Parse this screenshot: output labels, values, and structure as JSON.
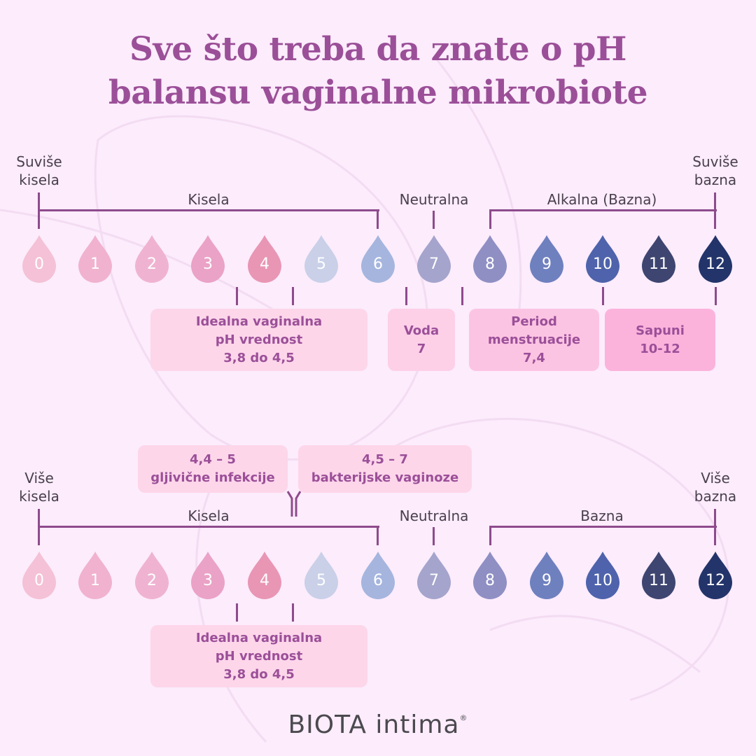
{
  "title": {
    "line1": "Sve što treba da znate o pH",
    "line2": "balansu vaginalne mikrobiote"
  },
  "colors": {
    "background": "#fcecfc",
    "title": "#9b4f98",
    "bracket": "#8e4b8c",
    "label": "#4a3f4d",
    "box_light": "#fdd6ea",
    "box_mid": "#fcc4e3",
    "box_dark": "#fbb3dc"
  },
  "drops": [
    {
      "value": "0",
      "color": "#f4c1d6"
    },
    {
      "value": "1",
      "color": "#f0b2cf"
    },
    {
      "value": "2",
      "color": "#efb3d1"
    },
    {
      "value": "3",
      "color": "#eaa2c6"
    },
    {
      "value": "4",
      "color": "#e896b4"
    },
    {
      "value": "5",
      "color": "#c9d0e8"
    },
    {
      "value": "6",
      "color": "#a5b5de"
    },
    {
      "value": "7",
      "color": "#a4a4cc"
    },
    {
      "value": "8",
      "color": "#8f8fc4"
    },
    {
      "value": "9",
      "color": "#6f80bf"
    },
    {
      "value": "10",
      "color": "#4e63ab"
    },
    {
      "value": "11",
      "color": "#3e4570"
    },
    {
      "value": "12",
      "color": "#23346a"
    }
  ],
  "scale_top": {
    "left_end": {
      "line1": "Suviše",
      "line2": "kisela"
    },
    "right_end": {
      "line1": "Suviše",
      "line2": "bazna"
    },
    "acid_label": "Kisela",
    "neutral_label": "Neutralna",
    "base_label": "Alkalna (Bazna)",
    "boxes": [
      {
        "line1": "Idealna vaginalna",
        "line2": "pH vrednost",
        "line3": "3,8 do 4,5"
      },
      {
        "line1": "Voda",
        "line2": "7"
      },
      {
        "line1": "Period",
        "line2": "menstruacije",
        "line3": "7,4"
      },
      {
        "line1": "Sapuni",
        "line2": "10-12"
      }
    ]
  },
  "scale_bottom": {
    "left_end": {
      "line1": "Više",
      "line2": "kisela"
    },
    "right_end": {
      "line1": "Više",
      "line2": "bazna"
    },
    "acid_label": "Kisela",
    "neutral_label": "Neutralna",
    "base_label": "Bazna",
    "top_boxes": [
      {
        "line1": "4,4 – 5",
        "line2": "gljivične infekcije"
      },
      {
        "line1": "4,5 – 7",
        "line2": "bakterijske vaginoze"
      }
    ],
    "boxes": [
      {
        "line1": "Idealna vaginalna",
        "line2": "pH vrednost",
        "line3": "3,8 do 4,5"
      }
    ]
  },
  "logo": {
    "brand": "BIOTA",
    "sub": "intima",
    "mark": "®"
  }
}
